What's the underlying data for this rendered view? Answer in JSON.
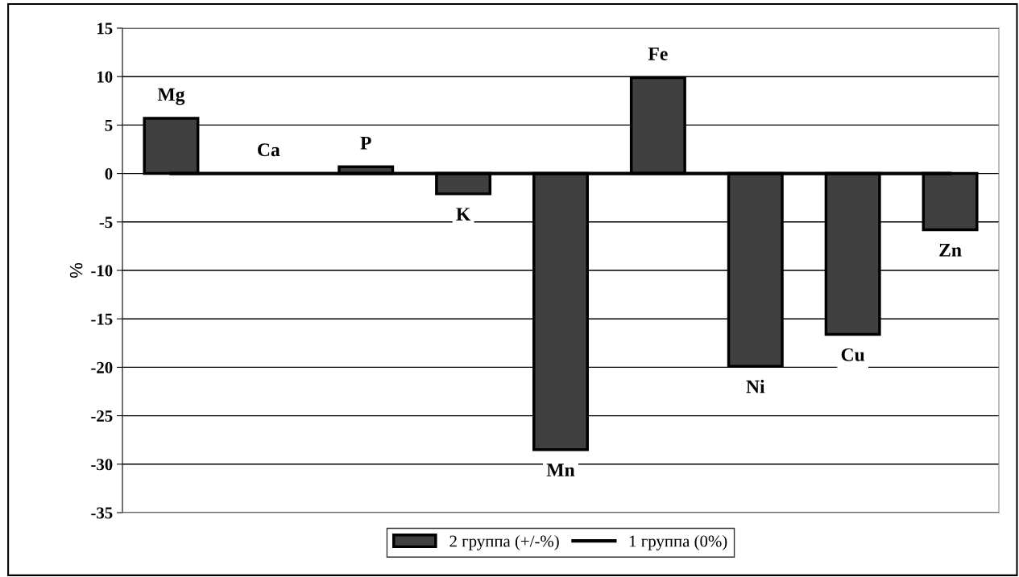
{
  "chart_data": {
    "type": "bar",
    "ylabel": "%",
    "categories": [
      "Mg",
      "Ca",
      "P",
      "K",
      "Mn",
      "Fe",
      "Ni",
      "Cu",
      "Zn"
    ],
    "series": [
      {
        "name": "2 группа (+/-%)",
        "color": "#404040",
        "values": [
          5.7,
          null,
          0.7,
          -2.1,
          -28.5,
          9.9,
          -19.9,
          -16.6,
          -5.8
        ]
      },
      {
        "name": "1 группа (0%)",
        "type": "line",
        "color": "#000000",
        "values": [
          0,
          0,
          0,
          0,
          0,
          0,
          0,
          0,
          0
        ]
      }
    ],
    "ylim": [
      -35,
      15
    ],
    "yticks": [
      -35,
      -30,
      -25,
      -20,
      -15,
      -10,
      -5,
      0,
      5,
      10,
      15
    ],
    "grid": "y",
    "legend": "bottom",
    "tick_labels": "y"
  }
}
